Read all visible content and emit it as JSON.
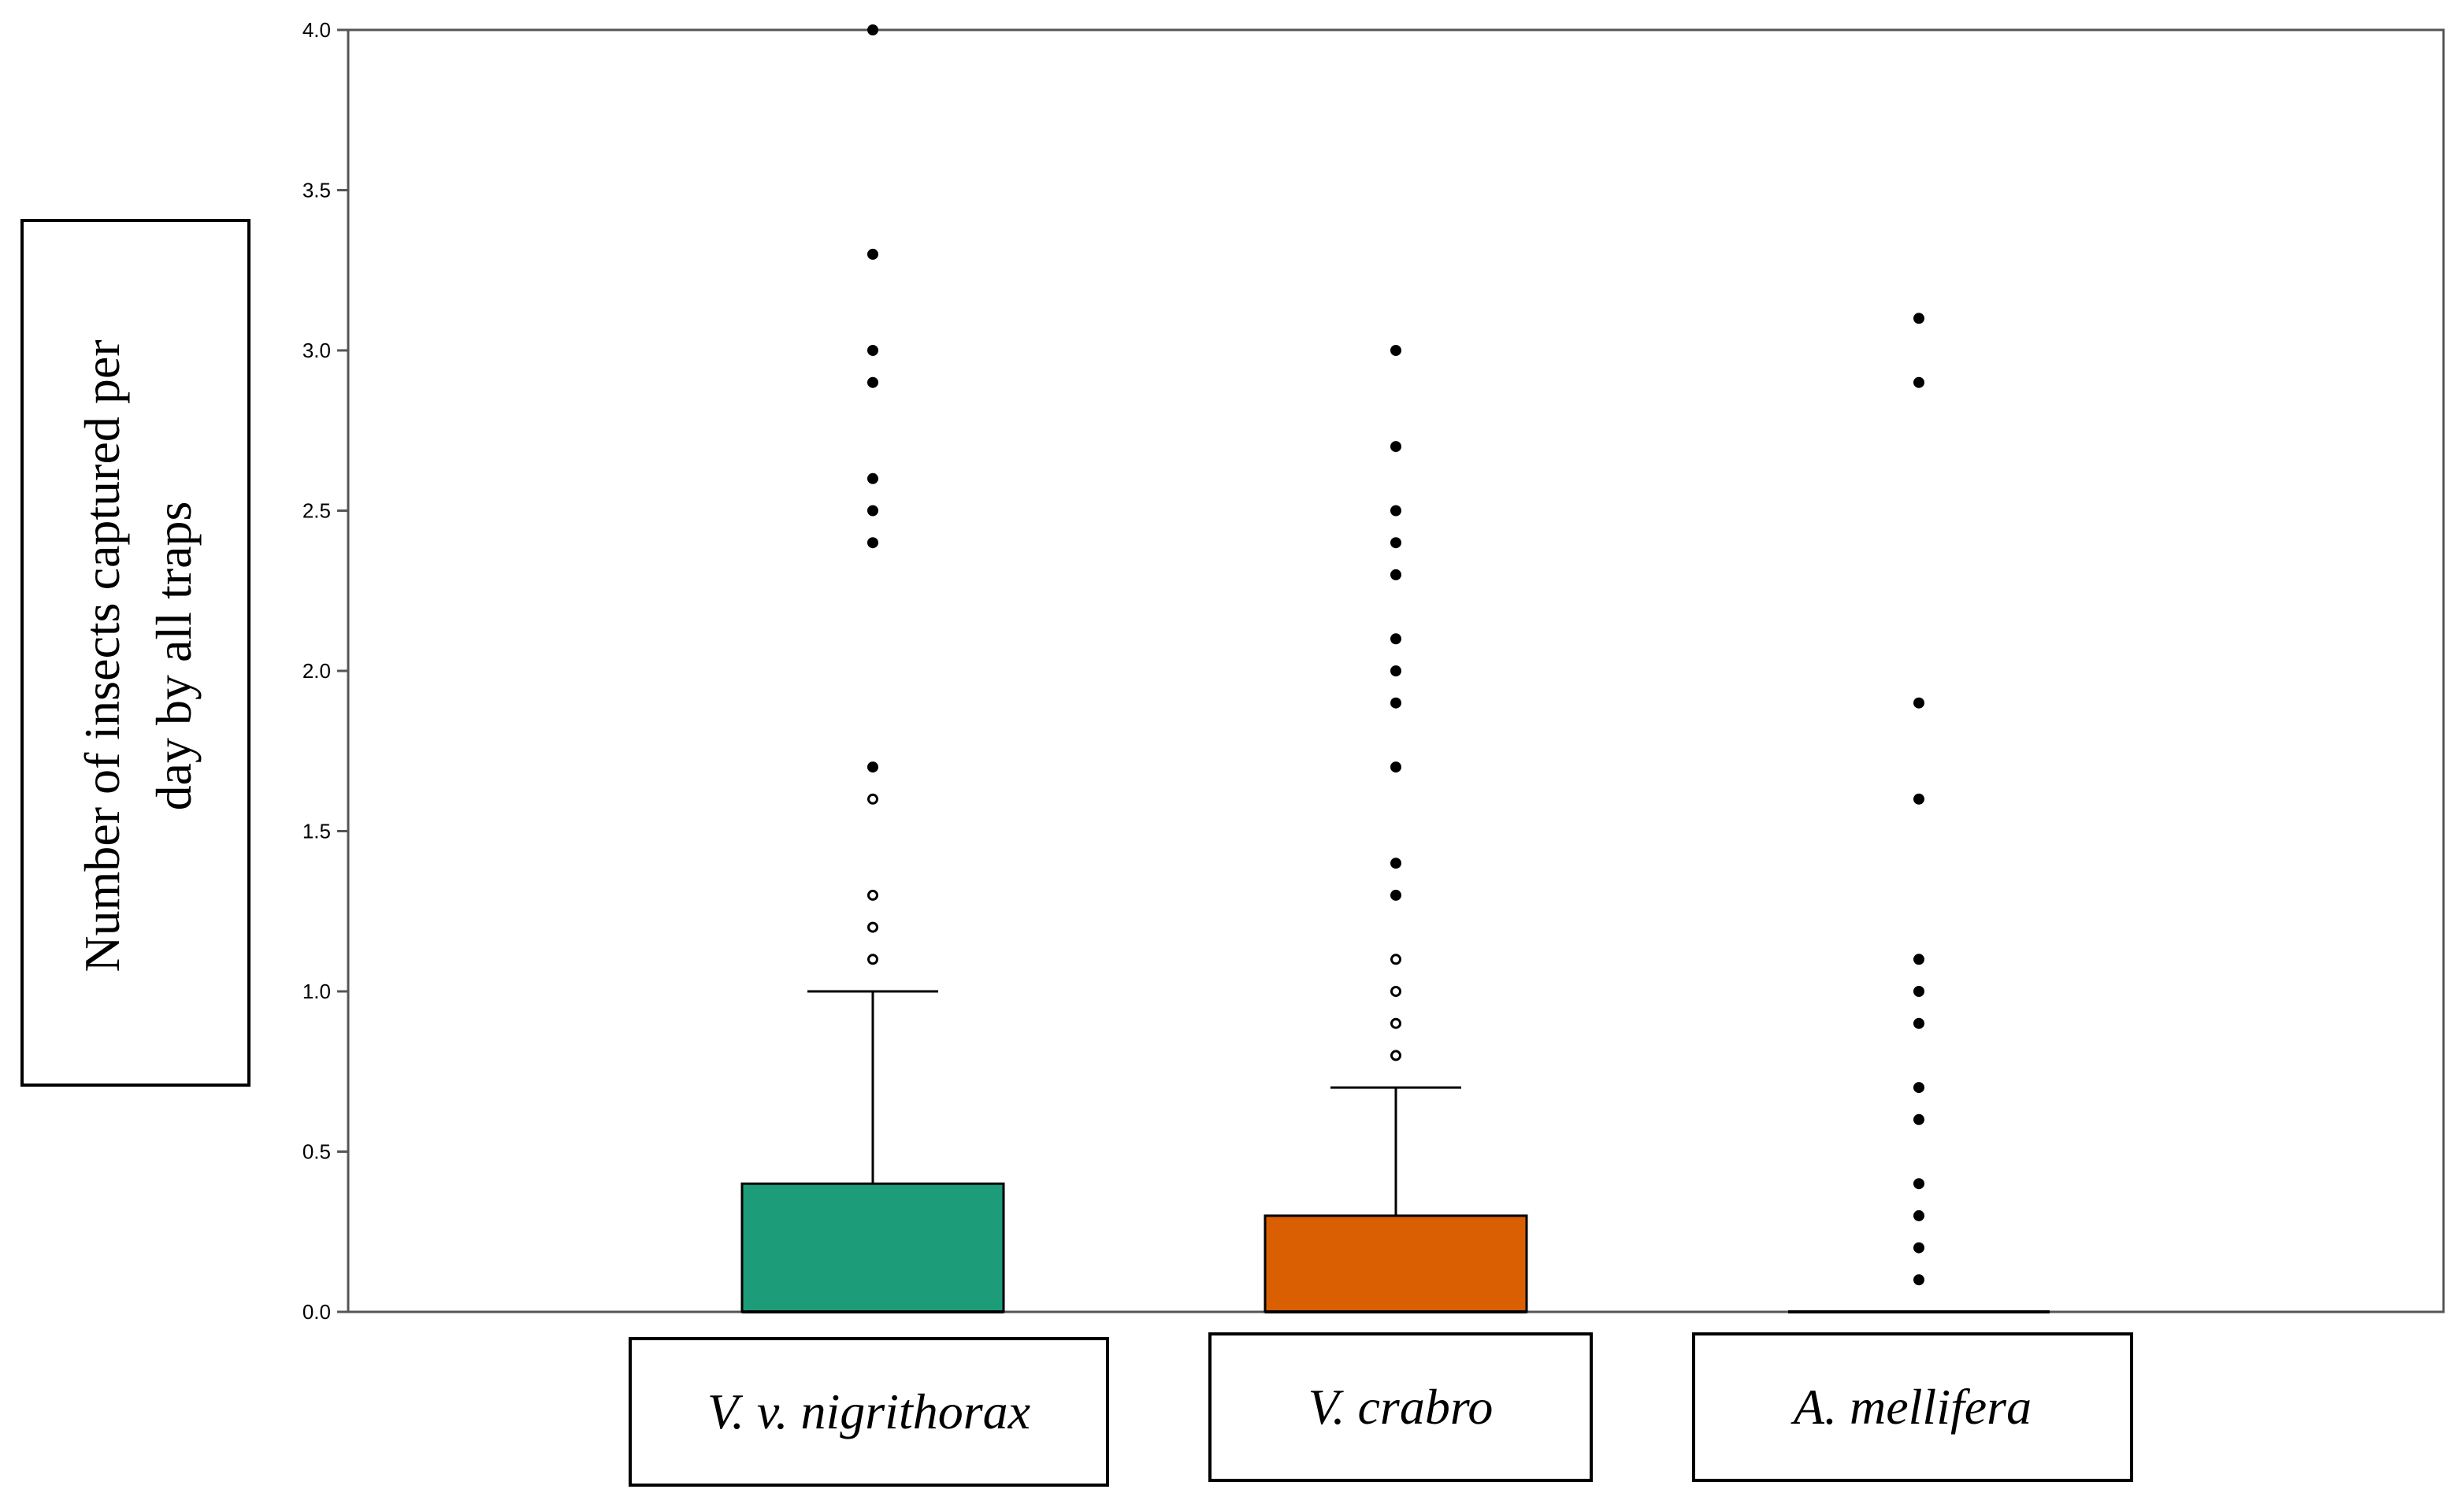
{
  "chart_data": {
    "type": "box",
    "title": "",
    "ylabel": "Number of insects captured per day by all traps",
    "ylabel_lines": [
      "Number of insects captured per",
      "day by all traps"
    ],
    "ylim": [
      0,
      4.0
    ],
    "yticks": [
      "0.0",
      "0.5",
      "1.0",
      "1.5",
      "2.0",
      "2.5",
      "3.0",
      "3.5",
      "4.0"
    ],
    "grid": false,
    "categories": [
      "V. v. nigrithorax",
      "V. crabro",
      "A. mellifera"
    ],
    "series": [
      {
        "category": "V. v. nigrithorax",
        "color": "#1c9c78",
        "q1": 0.0,
        "median": 0.0,
        "q3": 0.4,
        "whisker_low": 0.0,
        "whisker_high": 1.0,
        "outliers": [
          1.1,
          1.2,
          1.3,
          1.6
        ],
        "extremes": [
          1.7,
          2.4,
          2.5,
          2.6,
          2.9,
          3.0,
          3.3,
          4.0
        ]
      },
      {
        "category": "V. crabro",
        "color": "#d95f02",
        "q1": 0.0,
        "median": 0.0,
        "q3": 0.3,
        "whisker_low": 0.0,
        "whisker_high": 0.7,
        "outliers": [
          0.8,
          0.9,
          1.0,
          1.1
        ],
        "extremes": [
          1.3,
          1.4,
          1.7,
          1.9,
          2.0,
          2.1,
          2.3,
          2.4,
          2.5,
          2.7,
          3.0
        ]
      },
      {
        "category": "A. mellifera",
        "color": "#d95f02",
        "q1": 0.0,
        "median": 0.0,
        "q3": 0.0,
        "whisker_low": 0.0,
        "whisker_high": 0.0,
        "outliers": [],
        "extremes": [
          0.1,
          0.2,
          0.3,
          0.4,
          0.6,
          0.7,
          0.9,
          1.0,
          1.1,
          1.6,
          1.9,
          2.9,
          3.1
        ]
      }
    ]
  }
}
